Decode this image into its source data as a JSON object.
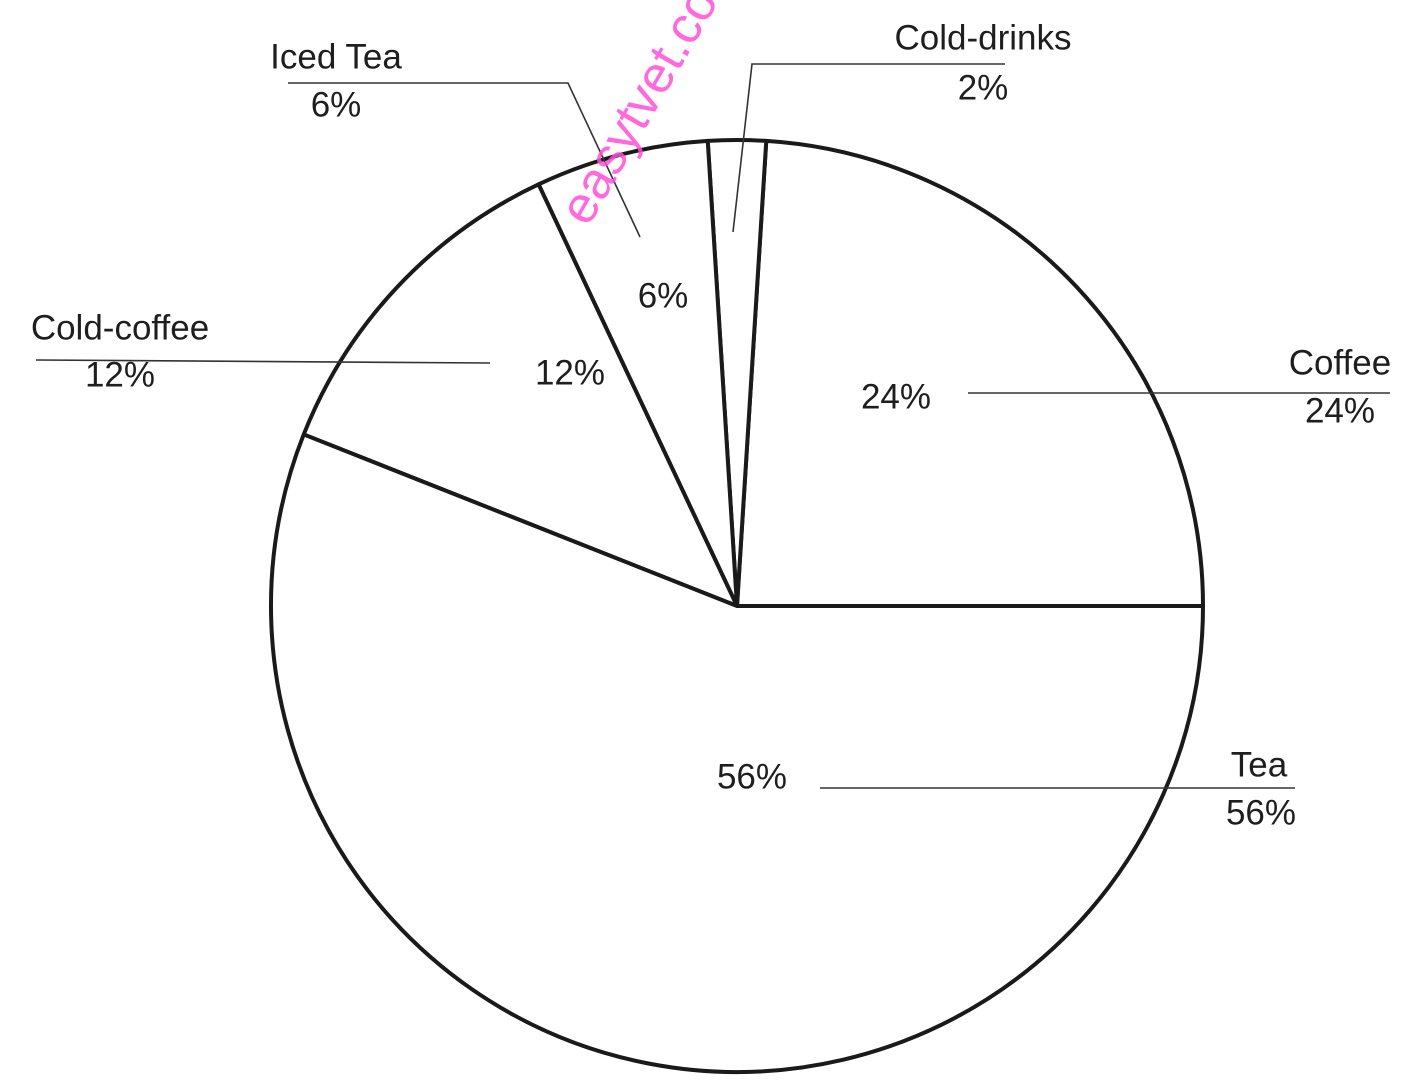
{
  "watermark": "easytvet.co",
  "chart_data": {
    "type": "pie",
    "title": "",
    "slices": [
      {
        "name": "Coffee",
        "value": 24,
        "inner_label": "24%",
        "outer_pct": "24%"
      },
      {
        "name": "Cold-drinks",
        "value": 2,
        "inner_label": "",
        "outer_pct": "2%"
      },
      {
        "name": "Iced Tea",
        "value": 6,
        "inner_label": "6%",
        "outer_pct": "6%"
      },
      {
        "name": "Cold-coffee",
        "value": 12,
        "inner_label": "12%",
        "outer_pct": "12%"
      },
      {
        "name": "Tea",
        "value": 56,
        "inner_label": "56%",
        "outer_pct": "56%"
      }
    ],
    "start": "3 o'clock",
    "direction": "counter-clockwise",
    "legend": "none",
    "labels": "outside with leader lines"
  }
}
